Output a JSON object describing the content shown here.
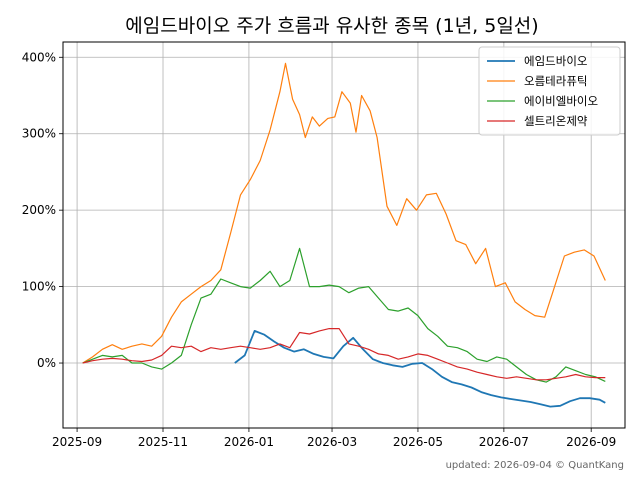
{
  "chart_data": {
    "type": "line",
    "title": "에임드바이오 주가 흐름과 유사한 종목 (1년, 5일선)",
    "xlabel": "",
    "ylabel": "",
    "x_ticks": [
      "2025-09",
      "2025-11",
      "2026-01",
      "2026-03",
      "2026-05",
      "2026-07",
      "2026-09"
    ],
    "y_ticks": [
      "0%",
      "100%",
      "200%",
      "300%",
      "400%"
    ],
    "y_tick_values": [
      0,
      100,
      200,
      300,
      400
    ],
    "xlim": [
      "2025-08-22",
      "2026-09-25"
    ],
    "ylim": [
      -85,
      420
    ],
    "grid": true,
    "legend_position": "top-right",
    "footer": "updated: 2026-09-04 © QuantKang",
    "series": [
      {
        "name": "에임드바이오",
        "color": "#1f77b4",
        "points": [
          [
            "2025-12-22",
            0
          ],
          [
            "2025-12-29",
            10
          ],
          [
            "2026-01-05",
            42
          ],
          [
            "2026-01-12",
            37
          ],
          [
            "2026-01-19",
            28
          ],
          [
            "2026-01-26",
            20
          ],
          [
            "2026-02-02",
            15
          ],
          [
            "2026-02-09",
            18
          ],
          [
            "2026-02-16",
            12
          ],
          [
            "2026-02-23",
            8
          ],
          [
            "2026-03-02",
            6
          ],
          [
            "2026-03-09",
            22
          ],
          [
            "2026-03-16",
            33
          ],
          [
            "2026-03-23",
            18
          ],
          [
            "2026-03-30",
            5
          ],
          [
            "2026-04-06",
            0
          ],
          [
            "2026-04-13",
            -3
          ],
          [
            "2026-04-20",
            -5
          ],
          [
            "2026-04-27",
            -1
          ],
          [
            "2026-05-04",
            0
          ],
          [
            "2026-05-11",
            -8
          ],
          [
            "2026-05-18",
            -18
          ],
          [
            "2026-05-25",
            -25
          ],
          [
            "2026-06-01",
            -28
          ],
          [
            "2026-06-08",
            -32
          ],
          [
            "2026-06-15",
            -38
          ],
          [
            "2026-06-22",
            -42
          ],
          [
            "2026-06-29",
            -45
          ],
          [
            "2026-07-06",
            -47
          ],
          [
            "2026-07-13",
            -49
          ],
          [
            "2026-07-20",
            -51
          ],
          [
            "2026-07-27",
            -54
          ],
          [
            "2026-08-03",
            -57
          ],
          [
            "2026-08-10",
            -56
          ],
          [
            "2026-08-17",
            -50
          ],
          [
            "2026-08-24",
            -46
          ],
          [
            "2026-08-31",
            -46
          ],
          [
            "2026-09-07",
            -48
          ],
          [
            "2026-09-11",
            -52
          ]
        ]
      },
      {
        "name": "오름테라퓨틱",
        "color": "#ff7f0e",
        "points": [
          [
            "2025-09-05",
            0
          ],
          [
            "2025-09-12",
            8
          ],
          [
            "2025-09-19",
            18
          ],
          [
            "2025-09-26",
            24
          ],
          [
            "2025-10-03",
            18
          ],
          [
            "2025-10-10",
            22
          ],
          [
            "2025-10-17",
            25
          ],
          [
            "2025-10-24",
            22
          ],
          [
            "2025-10-31",
            35
          ],
          [
            "2025-11-07",
            60
          ],
          [
            "2025-11-14",
            80
          ],
          [
            "2025-11-21",
            90
          ],
          [
            "2025-11-28",
            100
          ],
          [
            "2025-12-05",
            108
          ],
          [
            "2025-12-12",
            122
          ],
          [
            "2025-12-19",
            170
          ],
          [
            "2025-12-26",
            220
          ],
          [
            "2026-01-02",
            240
          ],
          [
            "2026-01-09",
            265
          ],
          [
            "2026-01-16",
            305
          ],
          [
            "2026-01-23",
            355
          ],
          [
            "2026-01-27",
            392
          ],
          [
            "2026-02-01",
            345
          ],
          [
            "2026-02-06",
            325
          ],
          [
            "2026-02-10",
            295
          ],
          [
            "2026-02-15",
            322
          ],
          [
            "2026-02-20",
            310
          ],
          [
            "2026-02-26",
            320
          ],
          [
            "2026-03-03",
            322
          ],
          [
            "2026-03-08",
            355
          ],
          [
            "2026-03-14",
            340
          ],
          [
            "2026-03-18",
            302
          ],
          [
            "2026-03-22",
            350
          ],
          [
            "2026-03-28",
            330
          ],
          [
            "2026-04-02",
            295
          ],
          [
            "2026-04-09",
            205
          ],
          [
            "2026-04-16",
            180
          ],
          [
            "2026-04-23",
            215
          ],
          [
            "2026-04-30",
            200
          ],
          [
            "2026-05-07",
            220
          ],
          [
            "2026-05-14",
            222
          ],
          [
            "2026-05-21",
            195
          ],
          [
            "2026-05-28",
            160
          ],
          [
            "2026-06-04",
            155
          ],
          [
            "2026-06-11",
            130
          ],
          [
            "2026-06-18",
            150
          ],
          [
            "2026-06-25",
            100
          ],
          [
            "2026-07-02",
            105
          ],
          [
            "2026-07-09",
            80
          ],
          [
            "2026-07-16",
            70
          ],
          [
            "2026-07-23",
            62
          ],
          [
            "2026-07-30",
            60
          ],
          [
            "2026-08-06",
            100
          ],
          [
            "2026-08-13",
            140
          ],
          [
            "2026-08-20",
            145
          ],
          [
            "2026-08-27",
            148
          ],
          [
            "2026-09-03",
            140
          ],
          [
            "2026-09-11",
            108
          ]
        ]
      },
      {
        "name": "에이비엘바이오",
        "color": "#2ca02c",
        "points": [
          [
            "2025-09-05",
            0
          ],
          [
            "2025-09-12",
            5
          ],
          [
            "2025-09-19",
            10
          ],
          [
            "2025-09-26",
            8
          ],
          [
            "2025-10-03",
            10
          ],
          [
            "2025-10-10",
            0
          ],
          [
            "2025-10-17",
            0
          ],
          [
            "2025-10-24",
            -5
          ],
          [
            "2025-10-31",
            -8
          ],
          [
            "2025-11-07",
            0
          ],
          [
            "2025-11-14",
            10
          ],
          [
            "2025-11-21",
            50
          ],
          [
            "2025-11-28",
            85
          ],
          [
            "2025-12-05",
            90
          ],
          [
            "2025-12-12",
            110
          ],
          [
            "2025-12-19",
            105
          ],
          [
            "2025-12-26",
            100
          ],
          [
            "2026-01-02",
            98
          ],
          [
            "2026-01-09",
            108
          ],
          [
            "2026-01-16",
            120
          ],
          [
            "2026-01-23",
            100
          ],
          [
            "2026-01-30",
            108
          ],
          [
            "2026-02-06",
            150
          ],
          [
            "2026-02-13",
            100
          ],
          [
            "2026-02-20",
            100
          ],
          [
            "2026-02-27",
            102
          ],
          [
            "2026-03-06",
            100
          ],
          [
            "2026-03-13",
            92
          ],
          [
            "2026-03-20",
            98
          ],
          [
            "2026-03-27",
            100
          ],
          [
            "2026-04-03",
            85
          ],
          [
            "2026-04-10",
            70
          ],
          [
            "2026-04-17",
            68
          ],
          [
            "2026-04-24",
            72
          ],
          [
            "2026-05-01",
            62
          ],
          [
            "2026-05-08",
            45
          ],
          [
            "2026-05-15",
            35
          ],
          [
            "2026-05-22",
            22
          ],
          [
            "2026-05-29",
            20
          ],
          [
            "2026-06-05",
            15
          ],
          [
            "2026-06-12",
            5
          ],
          [
            "2026-06-19",
            2
          ],
          [
            "2026-06-26",
            8
          ],
          [
            "2026-07-03",
            5
          ],
          [
            "2026-07-10",
            -5
          ],
          [
            "2026-07-17",
            -15
          ],
          [
            "2026-07-24",
            -22
          ],
          [
            "2026-07-31",
            -25
          ],
          [
            "2026-08-07",
            -18
          ],
          [
            "2026-08-14",
            -5
          ],
          [
            "2026-08-21",
            -10
          ],
          [
            "2026-08-28",
            -15
          ],
          [
            "2026-09-04",
            -18
          ],
          [
            "2026-09-11",
            -24
          ]
        ]
      },
      {
        "name": "셀트리온제약",
        "color": "#d62728",
        "points": [
          [
            "2025-09-05",
            0
          ],
          [
            "2025-09-12",
            3
          ],
          [
            "2025-09-19",
            5
          ],
          [
            "2025-09-26",
            6
          ],
          [
            "2025-10-03",
            5
          ],
          [
            "2025-10-10",
            3
          ],
          [
            "2025-10-17",
            2
          ],
          [
            "2025-10-24",
            4
          ],
          [
            "2025-10-31",
            10
          ],
          [
            "2025-11-07",
            22
          ],
          [
            "2025-11-14",
            20
          ],
          [
            "2025-11-21",
            22
          ],
          [
            "2025-11-28",
            15
          ],
          [
            "2025-12-05",
            20
          ],
          [
            "2025-12-12",
            18
          ],
          [
            "2025-12-19",
            20
          ],
          [
            "2025-12-26",
            22
          ],
          [
            "2026-01-02",
            20
          ],
          [
            "2026-01-09",
            18
          ],
          [
            "2026-01-16",
            20
          ],
          [
            "2026-01-23",
            25
          ],
          [
            "2026-01-30",
            20
          ],
          [
            "2026-02-06",
            40
          ],
          [
            "2026-02-13",
            38
          ],
          [
            "2026-02-20",
            42
          ],
          [
            "2026-02-27",
            45
          ],
          [
            "2026-03-06",
            45
          ],
          [
            "2026-03-13",
            25
          ],
          [
            "2026-03-20",
            22
          ],
          [
            "2026-03-27",
            18
          ],
          [
            "2026-04-03",
            12
          ],
          [
            "2026-04-10",
            10
          ],
          [
            "2026-04-17",
            5
          ],
          [
            "2026-04-24",
            8
          ],
          [
            "2026-05-01",
            12
          ],
          [
            "2026-05-08",
            10
          ],
          [
            "2026-05-15",
            5
          ],
          [
            "2026-05-22",
            0
          ],
          [
            "2026-05-29",
            -5
          ],
          [
            "2026-06-05",
            -8
          ],
          [
            "2026-06-12",
            -12
          ],
          [
            "2026-06-19",
            -15
          ],
          [
            "2026-06-26",
            -18
          ],
          [
            "2026-07-03",
            -20
          ],
          [
            "2026-07-10",
            -18
          ],
          [
            "2026-07-17",
            -20
          ],
          [
            "2026-07-24",
            -22
          ],
          [
            "2026-07-31",
            -22
          ],
          [
            "2026-08-07",
            -20
          ],
          [
            "2026-08-14",
            -18
          ],
          [
            "2026-08-21",
            -15
          ],
          [
            "2026-08-28",
            -18
          ],
          [
            "2026-09-04",
            -19
          ],
          [
            "2026-09-11",
            -19
          ]
        ]
      }
    ]
  }
}
